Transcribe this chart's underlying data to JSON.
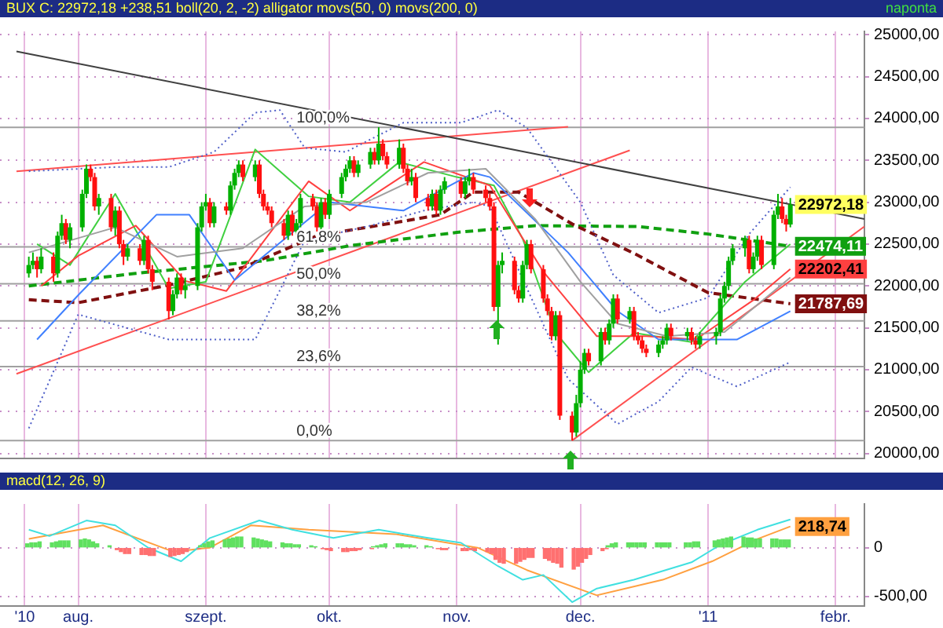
{
  "chart_data": [
    {
      "type": "candlestick",
      "title": "BUX C: 22972,18 +238,51 boll(20, 2, -2) alligator movs(50, 0) movs(200, 0)",
      "subtitle": "naponta",
      "x": [
        "2010-07-20",
        "2010-07-21",
        "2010-07-22",
        "2010-07-23",
        "2010-07-26",
        "2010-07-27",
        "2010-07-28",
        "2010-07-29",
        "2010-07-30",
        "2010-08-02",
        "2010-08-03",
        "2010-08-04",
        "2010-08-05",
        "2010-08-06",
        "2010-08-09",
        "2010-08-10",
        "2010-08-11",
        "2010-08-12",
        "2010-08-13",
        "2010-08-16",
        "2010-08-17",
        "2010-08-18",
        "2010-08-19",
        "2010-08-23",
        "2010-08-24",
        "2010-08-25",
        "2010-08-26",
        "2010-08-27",
        "2010-08-30",
        "2010-08-31",
        "2010-09-01",
        "2010-09-02",
        "2010-09-03",
        "2010-09-06",
        "2010-09-07",
        "2010-09-08",
        "2010-09-09",
        "2010-09-10",
        "2010-09-13",
        "2010-09-14",
        "2010-09-15",
        "2010-09-16",
        "2010-09-17",
        "2010-09-20",
        "2010-09-21",
        "2010-09-22",
        "2010-09-23",
        "2010-09-24",
        "2010-09-27",
        "2010-09-28",
        "2010-09-29",
        "2010-09-30",
        "2010-10-01",
        "2010-10-04",
        "2010-10-05",
        "2010-10-06",
        "2010-10-07",
        "2010-10-08",
        "2010-10-11",
        "2010-10-12",
        "2010-10-13",
        "2010-10-14",
        "2010-10-15",
        "2010-10-18",
        "2010-10-19",
        "2010-10-20",
        "2010-10-21",
        "2010-10-22",
        "2010-10-25",
        "2010-10-26",
        "2010-10-27",
        "2010-10-28",
        "2010-10-29",
        "2010-11-02",
        "2010-11-03",
        "2010-11-04",
        "2010-11-05",
        "2010-11-08",
        "2010-11-09",
        "2010-11-10",
        "2010-11-11",
        "2010-11-12",
        "2010-11-15",
        "2010-11-16",
        "2010-11-17",
        "2010-11-18",
        "2010-11-19",
        "2010-11-22",
        "2010-11-23",
        "2010-11-24",
        "2010-11-25",
        "2010-11-26",
        "2010-11-29",
        "2010-11-30",
        "2010-12-01",
        "2010-12-02",
        "2010-12-03",
        "2010-12-06",
        "2010-12-07",
        "2010-12-08",
        "2010-12-09",
        "2010-12-10",
        "2010-12-13",
        "2010-12-14",
        "2010-12-15",
        "2010-12-16",
        "2010-12-17",
        "2010-12-20",
        "2010-12-21",
        "2010-12-22",
        "2010-12-23",
        "2010-12-27",
        "2010-12-28",
        "2010-12-29",
        "2010-12-30",
        "2011-01-03",
        "2011-01-04",
        "2011-01-05",
        "2011-01-06",
        "2011-01-07",
        "2011-01-10",
        "2011-01-11",
        "2011-01-12",
        "2011-01-13",
        "2011-01-14",
        "2011-01-17",
        "2011-01-18",
        "2011-01-19",
        "2011-01-20",
        "2011-01-21"
      ],
      "ohlc": [
        [
          22150,
          22350,
          22100,
          22250
        ],
        [
          22250,
          22400,
          22200,
          22300
        ],
        [
          22300,
          22350,
          22100,
          22200
        ],
        [
          22200,
          22450,
          22150,
          22350
        ],
        [
          22350,
          22400,
          22050,
          22150
        ],
        [
          22150,
          22650,
          22100,
          22600
        ],
        [
          22600,
          22850,
          22550,
          22750
        ],
        [
          22750,
          22800,
          22500,
          22550
        ],
        [
          22550,
          22750,
          22450,
          22700
        ],
        [
          22700,
          23150,
          22650,
          23100
        ],
        [
          23100,
          23450,
          23050,
          23400
        ],
        [
          23400,
          23450,
          23250,
          23300
        ],
        [
          23300,
          23350,
          22900,
          22950
        ],
        [
          22950,
          23100,
          22850,
          23050
        ],
        [
          23050,
          23100,
          22650,
          22700
        ],
        [
          22700,
          22950,
          22600,
          22900
        ],
        [
          22900,
          22950,
          22450,
          22500
        ],
        [
          22500,
          22550,
          22250,
          22350
        ],
        [
          22350,
          22500,
          22300,
          22450
        ],
        [
          22450,
          22500,
          22250,
          22300
        ],
        [
          22300,
          22600,
          22250,
          22550
        ],
        [
          22550,
          22600,
          22150,
          22200
        ],
        [
          22200,
          22250,
          21950,
          22050
        ],
        [
          22050,
          22100,
          21600,
          21700
        ],
        [
          21700,
          21950,
          21650,
          21900
        ],
        [
          21900,
          22150,
          21850,
          22100
        ],
        [
          22100,
          22150,
          21900,
          21950
        ],
        [
          21950,
          22100,
          21850,
          22000
        ],
        [
          22000,
          22750,
          21950,
          22700
        ],
        [
          22700,
          23000,
          22650,
          22950
        ],
        [
          22950,
          23100,
          22900,
          23000
        ],
        [
          23000,
          23050,
          22700,
          22750
        ],
        [
          22750,
          23000,
          22700,
          22950
        ],
        [
          22950,
          23000,
          22850,
          22900
        ],
        [
          22900,
          23250,
          22850,
          23200
        ],
        [
          23200,
          23400,
          23150,
          23350
        ],
        [
          23350,
          23500,
          23300,
          23450
        ],
        [
          23450,
          23500,
          23250,
          23300
        ],
        [
          23300,
          23500,
          23250,
          23450
        ],
        [
          23450,
          23500,
          23050,
          23100
        ],
        [
          23100,
          23150,
          22900,
          22950
        ],
        [
          22950,
          23000,
          22850,
          22900
        ],
        [
          22900,
          22950,
          22700,
          22750
        ],
        [
          22750,
          22800,
          22550,
          22600
        ],
        [
          22600,
          22900,
          22550,
          22850
        ],
        [
          22850,
          22900,
          22600,
          22650
        ],
        [
          22650,
          22800,
          22600,
          22750
        ],
        [
          22750,
          23100,
          22700,
          23050
        ],
        [
          23050,
          23100,
          22900,
          22950
        ],
        [
          22950,
          23000,
          22650,
          22700
        ],
        [
          22700,
          23050,
          22650,
          23000
        ],
        [
          23000,
          23050,
          22800,
          22850
        ],
        [
          22850,
          23150,
          22800,
          23100
        ],
        [
          23100,
          23350,
          23050,
          23300
        ],
        [
          23300,
          23450,
          23250,
          23400
        ],
        [
          23400,
          23550,
          23350,
          23500
        ],
        [
          23500,
          23550,
          23300,
          23350
        ],
        [
          23350,
          23500,
          23300,
          23450
        ],
        [
          23450,
          23650,
          23400,
          23600
        ],
        [
          23600,
          23650,
          23450,
          23500
        ],
        [
          23500,
          23895,
          23450,
          23700
        ],
        [
          23700,
          23750,
          23500,
          23550
        ],
        [
          23550,
          23600,
          23400,
          23450
        ],
        [
          23450,
          23750,
          23400,
          23650
        ],
        [
          23650,
          23700,
          23350,
          23400
        ],
        [
          23400,
          23450,
          23200,
          23250
        ],
        [
          23250,
          23400,
          23200,
          23300
        ],
        [
          23300,
          23350,
          23000,
          23050
        ],
        [
          23050,
          23100,
          22900,
          22950
        ],
        [
          22950,
          23150,
          22900,
          23100
        ],
        [
          23100,
          23150,
          22850,
          22900
        ],
        [
          22900,
          23200,
          22850,
          23150
        ],
        [
          23150,
          23300,
          23100,
          23250
        ],
        [
          23250,
          23300,
          23050,
          23100
        ],
        [
          23100,
          23300,
          23050,
          23250
        ],
        [
          23250,
          23400,
          23200,
          23300
        ],
        [
          23300,
          23350,
          23100,
          23150
        ],
        [
          23150,
          23200,
          23000,
          23050
        ],
        [
          23050,
          23100,
          22900,
          22950
        ],
        [
          22950,
          23000,
          21700,
          21750
        ],
        [
          21750,
          22300,
          21300,
          22250
        ],
        [
          22250,
          22400,
          22150,
          22300
        ],
        [
          22300,
          22350,
          21900,
          21950
        ],
        [
          21950,
          22000,
          21800,
          21850
        ],
        [
          21850,
          22300,
          21800,
          22250
        ],
        [
          22250,
          22550,
          22200,
          22500
        ],
        [
          22500,
          22550,
          22150,
          22200
        ],
        [
          22200,
          22250,
          21800,
          21850
        ],
        [
          21850,
          21900,
          21650,
          21700
        ],
        [
          21700,
          21750,
          21350,
          21400
        ],
        [
          21400,
          21700,
          21350,
          21650
        ],
        [
          21650,
          21700,
          20400,
          20450
        ],
        [
          20450,
          20500,
          20154,
          20250
        ],
        [
          20250,
          20700,
          20200,
          20600
        ],
        [
          20600,
          21100,
          20550,
          21000
        ],
        [
          21000,
          21250,
          20950,
          21200
        ],
        [
          21200,
          21250,
          21050,
          21100
        ],
        [
          21100,
          21500,
          21050,
          21450
        ],
        [
          21450,
          21500,
          21300,
          21350
        ],
        [
          21350,
          21600,
          21300,
          21550
        ],
        [
          21550,
          21900,
          21500,
          21850
        ],
        [
          21850,
          21900,
          21550,
          21600
        ],
        [
          21600,
          21750,
          21550,
          21700
        ],
        [
          21700,
          21750,
          21350,
          21400
        ],
        [
          21400,
          21450,
          21300,
          21350
        ],
        [
          21350,
          21400,
          21200,
          21250
        ],
        [
          21250,
          21300,
          21150,
          21200
        ],
        [
          21200,
          21350,
          21150,
          21300
        ],
        [
          21300,
          21400,
          21250,
          21350
        ],
        [
          21350,
          21550,
          21300,
          21500
        ],
        [
          21500,
          21550,
          21350,
          21400
        ],
        [
          21400,
          21500,
          21350,
          21450
        ],
        [
          21450,
          21500,
          21300,
          21350
        ],
        [
          21350,
          21400,
          21250,
          21300
        ],
        [
          21300,
          21450,
          21250,
          21400
        ],
        [
          21400,
          21500,
          21300,
          21450
        ],
        [
          21450,
          21900,
          21400,
          21850
        ],
        [
          21850,
          22050,
          21800,
          22000
        ],
        [
          22000,
          22350,
          21950,
          22300
        ],
        [
          22300,
          22500,
          22250,
          22450
        ],
        [
          22450,
          22600,
          22350,
          22550
        ],
        [
          22550,
          22600,
          22150,
          22200
        ],
        [
          22200,
          22400,
          22150,
          22350
        ],
        [
          22350,
          22600,
          22300,
          22550
        ],
        [
          22550,
          22600,
          22200,
          22250
        ],
        [
          22250,
          22900,
          22200,
          22850
        ],
        [
          22850,
          23100,
          22800,
          22950
        ],
        [
          22950,
          23050,
          22750,
          22800
        ],
        [
          22800,
          22850,
          22650,
          22733.67
        ],
        [
          22733.67,
          23050,
          22700,
          22972.18
        ]
      ],
      "series": [
        {
          "type": "line",
          "color": "#5060c8",
          "line_style": "dotted",
          "x": [
            "2010-07-20",
            "2010-08-10",
            "2010-08-23",
            "2010-09-03",
            "2010-09-13",
            "2010-09-19",
            "2010-09-25",
            "2010-10-05",
            "2010-10-19",
            "2010-11-02",
            "2010-11-11",
            "2010-11-18",
            "2010-12-01",
            "2010-12-09",
            "2010-12-20",
            "2011-01-01",
            "2011-01-11",
            "2011-01-21"
          ],
          "values": [
            23370,
            23420,
            23420,
            23600,
            24070,
            24100,
            23650,
            23600,
            23950,
            23950,
            24100,
            23890,
            23000,
            22130,
            21680,
            21860,
            22620,
            23180
          ]
        },
        {
          "type": "line",
          "color": "#5060c8",
          "line_style": "dotted",
          "x": [
            "2010-07-20",
            "2010-08-01",
            "2010-08-23",
            "2010-09-03",
            "2010-09-13",
            "2010-09-25",
            "2010-10-11",
            "2010-10-24",
            "2010-11-05",
            "2010-11-09",
            "2010-11-28",
            "2010-12-10",
            "2010-12-20",
            "2010-12-28",
            "2011-01-08",
            "2011-01-21"
          ],
          "values": [
            20300,
            21660,
            21360,
            21360,
            21360,
            22540,
            22720,
            22900,
            23000,
            22950,
            20890,
            20350,
            20620,
            21030,
            20800,
            21090
          ]
        },
        {
          "type": "line",
          "color": "#a0a0a0",
          "line_style": "solid",
          "x": [
            "2010-07-20",
            "2010-08-10",
            "2010-08-25",
            "2010-09-10",
            "2010-09-25",
            "2010-10-10",
            "2010-10-25",
            "2010-11-08",
            "2010-11-20",
            "2010-12-01",
            "2010-12-10",
            "2010-12-22",
            "2011-01-05",
            "2011-01-21"
          ],
          "values": [
            22400,
            22700,
            22350,
            22450,
            22950,
            23000,
            23350,
            23400,
            22800,
            22050,
            21550,
            21400,
            21450,
            22100
          ]
        },
        {
          "type": "line",
          "color": "#4080ff",
          "line_style": "solid",
          "x": [
            "2010-07-22",
            "2010-08-01",
            "2010-08-20",
            "2010-08-28",
            "2010-09-08",
            "2010-10-01",
            "2010-10-19",
            "2010-11-05",
            "2010-11-09",
            "2010-11-28",
            "2010-12-10",
            "2010-12-20",
            "2011-01-08",
            "2011-01-21"
          ],
          "values": [
            21360,
            21890,
            22850,
            22850,
            22070,
            23000,
            22900,
            23350,
            23300,
            22400,
            21700,
            21360,
            21360,
            21700
          ]
        },
        {
          "type": "line",
          "color": "#ff4040",
          "line_style": "solid",
          "x": [
            "2010-07-23",
            "2010-08-01",
            "2010-08-15",
            "2010-08-27",
            "2010-09-06",
            "2010-09-26",
            "2010-10-06",
            "2010-10-24",
            "2010-11-09",
            "2010-11-22",
            "2010-12-05",
            "2010-12-17",
            "2010-12-29",
            "2011-01-12",
            "2011-01-21"
          ],
          "values": [
            22000,
            22360,
            22720,
            22060,
            21940,
            23250,
            22900,
            23480,
            23200,
            22170,
            21400,
            21400,
            21360,
            21830,
            22202.41
          ]
        },
        {
          "type": "line",
          "color": "#40d040",
          "line_style": "solid",
          "x": [
            "2010-07-22",
            "2010-07-30",
            "2010-08-10",
            "2010-08-23",
            "2010-09-01",
            "2010-09-13",
            "2010-09-26",
            "2010-10-06",
            "2010-10-18",
            "2010-11-01",
            "2010-11-10",
            "2010-11-17",
            "2010-11-25",
            "2010-12-03",
            "2010-12-14",
            "2010-12-28",
            "2011-01-10",
            "2011-01-21"
          ],
          "values": [
            22500,
            22250,
            23100,
            21970,
            22050,
            23630,
            23070,
            23000,
            23480,
            23300,
            23200,
            22560,
            21440,
            20970,
            21440,
            21330,
            22050,
            22500
          ]
        },
        {
          "type": "line",
          "color": "#801010",
          "line_style": "dashed",
          "x": [
            "2010-07-20",
            "2010-08-01",
            "2010-08-23",
            "2010-09-10",
            "2010-09-28",
            "2010-10-15",
            "2010-10-28",
            "2010-11-05",
            "2010-11-16",
            "2010-11-29",
            "2010-12-14",
            "2011-01-01",
            "2011-01-21"
          ],
          "values": [
            21835,
            21800,
            22010,
            22220,
            22600,
            22740,
            22850,
            23120,
            23120,
            22740,
            22390,
            21920,
            21787.69
          ]
        },
        {
          "type": "line",
          "color": "#10a010",
          "line_style": "dashed",
          "x": [
            "2010-07-20",
            "2010-08-15",
            "2010-09-15",
            "2010-10-06",
            "2010-11-01",
            "2010-11-20",
            "2010-12-15",
            "2011-01-01",
            "2011-01-21"
          ],
          "values": [
            22000,
            22150,
            22300,
            22480,
            22640,
            22720,
            22710,
            22620,
            22474.11
          ]
        },
        {
          "type": "line",
          "color": "#404040",
          "line_style": "solid",
          "x": [
            "2010-07-17",
            "2011-02-08"
          ],
          "values": [
            24800,
            22800
          ]
        },
        {
          "type": "line",
          "color": "#ff5050",
          "line_style": "solid",
          "x": [
            "2010-07-17",
            "2010-11-28"
          ],
          "values": [
            23370,
            23900
          ]
        },
        {
          "type": "line",
          "color": "#ff5050",
          "line_style": "solid",
          "x": [
            "2010-07-17",
            "2010-12-13"
          ],
          "values": [
            20950,
            23620
          ]
        },
        {
          "type": "line",
          "color": "#ff5050",
          "line_style": "solid",
          "x": [
            "2010-11-29",
            "2011-02-08"
          ],
          "values": [
            20154,
            22710
          ]
        }
      ],
      "xlim": [
        "2010-07-13",
        "2011-02-08"
      ],
      "xticks": [
        {
          "value": "2010-07-19",
          "label": null
        },
        {
          "value": "2010-08-01",
          "label": null
        },
        {
          "value": "2010-09-01",
          "label": null
        },
        {
          "value": "2010-10-01",
          "label": null
        },
        {
          "value": "2010-11-01",
          "label": null
        },
        {
          "value": "2010-12-01",
          "label": null
        },
        {
          "value": "2011-01-01",
          "label": null
        },
        {
          "value": "2011-02-01",
          "label": null
        }
      ],
      "ylim": [
        19940,
        25040
      ],
      "yticks": [
        {
          "value": 20000,
          "label": "20000,00"
        },
        {
          "value": 20500,
          "label": "20500,00"
        },
        {
          "value": 21000,
          "label": "21000,00"
        },
        {
          "value": 21500,
          "label": "21500,00"
        },
        {
          "value": 22000,
          "label": "22000,00"
        },
        {
          "value": 22500,
          "label": "22500,00"
        },
        {
          "value": 23000,
          "label": "23000,00"
        },
        {
          "value": 23500,
          "label": "23500,00"
        },
        {
          "value": 24000,
          "label": "24000,00"
        },
        {
          "value": 24500,
          "label": "24500,00"
        },
        {
          "value": 25000,
          "label": "25000,00"
        }
      ],
      "ref_lines": [
        {
          "axis": "y",
          "value": 23895,
          "color": "#a0a0a0"
        },
        {
          "axis": "y",
          "value": 22466,
          "color": "#a0a0a0"
        },
        {
          "axis": "y",
          "value": 22025,
          "color": "#a0a0a0"
        },
        {
          "axis": "y",
          "value": 21583,
          "color": "#a0a0a0"
        },
        {
          "axis": "y",
          "value": 21037,
          "color": "#a0a0a0"
        },
        {
          "axis": "y",
          "value": 20154,
          "color": "#a0a0a0"
        }
      ],
      "annotations": [
        {
          "text": "100,0%",
          "x": "2010-09-23",
          "y": 23895
        },
        {
          "text": "61,8%",
          "x": "2010-09-23",
          "y": 22466
        },
        {
          "text": "50,0%",
          "x": "2010-09-23",
          "y": 22025
        },
        {
          "text": "38,2%",
          "x": "2010-09-23",
          "y": 21583
        },
        {
          "text": "23,6%",
          "x": "2010-09-23",
          "y": 21037
        },
        {
          "text": "0,0%",
          "x": "2010-09-23",
          "y": 20154
        },
        {
          "text": "22972,18",
          "x": "2011-01-21",
          "y": 22972.18
        },
        {
          "text": "22474,11",
          "x": "2011-01-21",
          "y": 22474.11
        },
        {
          "text": "22202,41",
          "x": "2011-01-21",
          "y": 22202.41
        },
        {
          "text": "21787,69",
          "x": "2011-01-21",
          "y": 21787.69
        }
      ],
      "grid": true,
      "tick_labels": "y"
    },
    {
      "type": "line",
      "title": "macd(12, 26, 9)",
      "x": [
        "2010-07-20",
        "2010-07-21",
        "2010-07-22",
        "2010-07-23",
        "2010-07-26",
        "2010-07-27",
        "2010-07-28",
        "2010-07-29",
        "2010-07-30",
        "2010-08-02",
        "2010-08-03",
        "2010-08-04",
        "2010-08-05",
        "2010-08-06",
        "2010-08-09",
        "2010-08-10",
        "2010-08-11",
        "2010-08-12",
        "2010-08-13",
        "2010-08-16",
        "2010-08-17",
        "2010-08-18",
        "2010-08-19",
        "2010-08-23",
        "2010-08-24",
        "2010-08-25",
        "2010-08-26",
        "2010-08-27",
        "2010-08-30",
        "2010-08-31",
        "2010-09-01",
        "2010-09-02",
        "2010-09-03",
        "2010-09-06",
        "2010-09-07",
        "2010-09-08",
        "2010-09-09",
        "2010-09-10",
        "2010-09-13",
        "2010-09-14",
        "2010-09-15",
        "2010-09-16",
        "2010-09-17",
        "2010-09-20",
        "2010-09-21",
        "2010-09-22",
        "2010-09-23",
        "2010-09-24",
        "2010-09-27",
        "2010-09-28",
        "2010-09-29",
        "2010-09-30",
        "2010-10-01",
        "2010-10-04",
        "2010-10-05",
        "2010-10-06",
        "2010-10-07",
        "2010-10-08",
        "2010-10-11",
        "2010-10-12",
        "2010-10-13",
        "2010-10-14",
        "2010-10-15",
        "2010-10-18",
        "2010-10-19",
        "2010-10-20",
        "2010-10-21",
        "2010-10-22",
        "2010-10-25",
        "2010-10-26",
        "2010-10-27",
        "2010-10-28",
        "2010-10-29",
        "2010-11-02",
        "2010-11-03",
        "2010-11-04",
        "2010-11-05",
        "2010-11-08",
        "2010-11-09",
        "2010-11-10",
        "2010-11-11",
        "2010-11-12",
        "2010-11-15",
        "2010-11-16",
        "2010-11-17",
        "2010-11-18",
        "2010-11-19",
        "2010-11-22",
        "2010-11-23",
        "2010-11-24",
        "2010-11-25",
        "2010-11-26",
        "2010-11-29",
        "2010-11-30",
        "2010-12-01",
        "2010-12-02",
        "2010-12-03",
        "2010-12-06",
        "2010-12-07",
        "2010-12-08",
        "2010-12-09",
        "2010-12-10",
        "2010-12-13",
        "2010-12-14",
        "2010-12-15",
        "2010-12-16",
        "2010-12-17",
        "2010-12-20",
        "2010-12-21",
        "2010-12-22",
        "2010-12-23",
        "2010-12-27",
        "2010-12-28",
        "2010-12-29",
        "2010-12-30",
        "2011-01-03",
        "2011-01-04",
        "2011-01-05",
        "2011-01-06",
        "2011-01-07",
        "2011-01-10",
        "2011-01-11",
        "2011-01-12",
        "2011-01-13",
        "2011-01-14",
        "2011-01-17",
        "2011-01-18",
        "2011-01-19",
        "2011-01-20",
        "2011-01-21"
      ],
      "series": [
        {
          "type": "bar",
          "color": "#60e060",
          "values": [
            40,
            50,
            50,
            60,
            50,
            60,
            70,
            70,
            70,
            80,
            90,
            80,
            60,
            40,
            20,
            null,
            null,
            null,
            null,
            null,
            null,
            null,
            null,
            null,
            null,
            null,
            null,
            null,
            null,
            20,
            40,
            60,
            70,
            80,
            90,
            100,
            110,
            110,
            100,
            90,
            80,
            70,
            60,
            50,
            40,
            40,
            30,
            30,
            20,
            10,
            null,
            null,
            null,
            null,
            null,
            null,
            null,
            null,
            null,
            10,
            20,
            30,
            40,
            40,
            40,
            30,
            30,
            20,
            20,
            10,
            null,
            null,
            null,
            null,
            null,
            null,
            null,
            null,
            null,
            null,
            null,
            null,
            null,
            null,
            null,
            null,
            null,
            null,
            null,
            null,
            null,
            null,
            null,
            null,
            null,
            null,
            null,
            null,
            null,
            20,
            40,
            50,
            50,
            50,
            50,
            50,
            50,
            50,
            50,
            50,
            50,
            50,
            50,
            60,
            60,
            70,
            80,
            90,
            100,
            110,
            110,
            100,
            100,
            90,
            90,
            90,
            90,
            80,
            80,
            80
          ]
        },
        {
          "type": "bar",
          "color": "#ff7070",
          "values": [
            null,
            null,
            null,
            null,
            null,
            null,
            null,
            null,
            null,
            null,
            null,
            null,
            null,
            null,
            null,
            -20,
            -40,
            -60,
            -60,
            -70,
            -70,
            -80,
            -80,
            -90,
            -80,
            -70,
            -60,
            -40,
            -10,
            null,
            null,
            null,
            null,
            null,
            null,
            null,
            null,
            null,
            null,
            null,
            null,
            null,
            null,
            null,
            null,
            null,
            null,
            null,
            null,
            null,
            -10,
            -20,
            -30,
            -40,
            -40,
            -30,
            -30,
            -20,
            -10,
            null,
            null,
            null,
            null,
            null,
            null,
            null,
            null,
            null,
            null,
            null,
            -10,
            -20,
            -20,
            -30,
            -30,
            -20,
            -30,
            -40,
            -60,
            -120,
            -150,
            -160,
            -160,
            -140,
            -120,
            -100,
            -100,
            -110,
            -130,
            -150,
            -160,
            -200,
            -220,
            -190,
            -150,
            -110,
            -70,
            -30,
            -10,
            null,
            null,
            null,
            null,
            null,
            null,
            null,
            null,
            null,
            null,
            null,
            null,
            null,
            null,
            null,
            null,
            null,
            null,
            null,
            null,
            null,
            null,
            null,
            null,
            null,
            null,
            null,
            null,
            null,
            null,
            null
          ]
        },
        {
          "type": "line",
          "color": "#40e0e0",
          "line_style": "solid",
          "x": [
            "2010-07-20",
            "2010-07-25",
            "2010-08-03",
            "2010-08-10",
            "2010-08-18",
            "2010-08-26",
            "2010-09-02",
            "2010-09-14",
            "2010-09-22",
            "2010-10-02",
            "2010-10-13",
            "2010-10-25",
            "2010-11-02",
            "2010-11-11",
            "2010-11-17",
            "2010-11-22",
            "2010-11-29",
            "2010-12-05",
            "2010-12-14",
            "2010-12-28",
            "2011-01-04",
            "2011-01-13",
            "2011-01-21"
          ],
          "values": [
            185,
            120,
            280,
            230,
            0,
            -140,
            100,
            280,
            185,
            100,
            185,
            100,
            50,
            -190,
            -330,
            -280,
            -560,
            -420,
            -330,
            -150,
            30,
            185,
            290
          ]
        },
        {
          "type": "line",
          "color": "#ffa040",
          "line_style": "solid",
          "x": [
            "2010-07-20",
            "2010-08-07",
            "2010-08-24",
            "2010-09-02",
            "2010-09-12",
            "2010-09-26",
            "2010-10-17",
            "2010-11-06",
            "2010-11-18",
            "2010-12-05",
            "2010-12-21",
            "2011-01-02",
            "2011-01-13",
            "2011-01-21"
          ],
          "values": [
            90,
            230,
            -40,
            0,
            230,
            185,
            140,
            0,
            -230,
            -490,
            -330,
            -140,
            90,
            218.74
          ]
        }
      ],
      "xlim": [
        "2010-07-13",
        "2011-02-08"
      ],
      "xticks": [
        {
          "value": "2010-07-19",
          "label": "'10"
        },
        {
          "value": "2010-08-01",
          "label": "aug."
        },
        {
          "value": "2010-09-01",
          "label": "szept."
        },
        {
          "value": "2010-10-01",
          "label": "okt."
        },
        {
          "value": "2010-11-01",
          "label": "nov."
        },
        {
          "value": "2010-12-01",
          "label": "dec."
        },
        {
          "value": "2011-01-01",
          "label": "'11"
        },
        {
          "value": "2011-02-01",
          "label": "febr."
        }
      ],
      "ylim": [
        -600,
        450
      ],
      "yticks": [
        {
          "value": -500,
          "label": "-500,00"
        },
        0
      ],
      "annotations": [
        {
          "text": "218,74",
          "x": "2011-01-21",
          "y": 218.74
        }
      ],
      "grid": true
    }
  ]
}
